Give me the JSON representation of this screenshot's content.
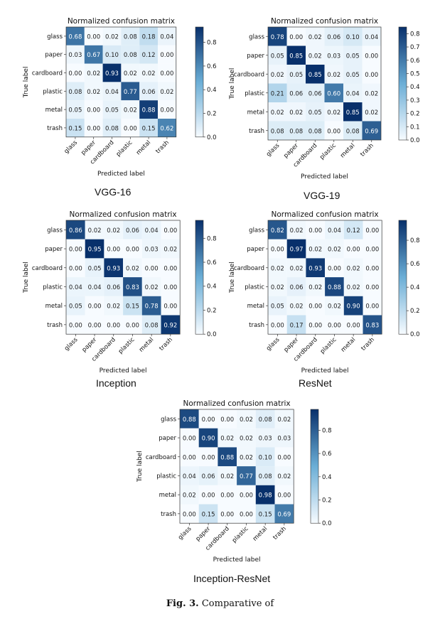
{
  "chart_data": [
    {
      "type": "heatmap",
      "title": "Normalized confusion matrix",
      "xlabel": "Predicted label",
      "ylabel": "True label",
      "model": "VGG-16",
      "classes": [
        "glass",
        "paper",
        "cardboard",
        "plastic",
        "metal",
        "trash"
      ],
      "matrix": [
        [
          "0.68",
          "0.00",
          "0.02",
          "0.08",
          "0.18",
          "0.04"
        ],
        [
          "0.03",
          "0.67",
          "0.10",
          "0.08",
          "0.12",
          "0.00"
        ],
        [
          "0.00",
          "0.02",
          "0.93",
          "0.02",
          "0.02",
          "0.00"
        ],
        [
          "0.08",
          "0.02",
          "0.04",
          "0.77",
          "0.06",
          "0.02"
        ],
        [
          "0.05",
          "0.00",
          "0.05",
          "0.02",
          "0.88",
          "0.00"
        ],
        [
          "0.15",
          "0.00",
          "0.08",
          "0.00",
          "0.15",
          "0.62"
        ]
      ],
      "colorbar_ticks": [
        "0.8",
        "0.6",
        "0.4",
        "0.2",
        "0.0"
      ],
      "colorbar_range": [
        0,
        0.93
      ]
    },
    {
      "type": "heatmap",
      "title": "Normalized confusion matrix",
      "xlabel": "Predicted label",
      "ylabel": "True label",
      "model": "VGG-19",
      "classes": [
        "glass",
        "paper",
        "cardboard",
        "plastic",
        "metal",
        "trash"
      ],
      "matrix": [
        [
          "0.78",
          "0.00",
          "0.02",
          "0.06",
          "0.10",
          "0.04"
        ],
        [
          "0.05",
          "0.85",
          "0.02",
          "0.03",
          "0.05",
          "0.00"
        ],
        [
          "0.02",
          "0.05",
          "0.85",
          "0.02",
          "0.05",
          "0.00"
        ],
        [
          "0.21",
          "0.06",
          "0.06",
          "0.60",
          "0.04",
          "0.02"
        ],
        [
          "0.02",
          "0.02",
          "0.05",
          "0.02",
          "0.85",
          "0.02"
        ],
        [
          "0.08",
          "0.08",
          "0.08",
          "0.00",
          "0.08",
          "0.69"
        ]
      ],
      "colorbar_ticks": [
        "0.8",
        "0.7",
        "0.6",
        "0.5",
        "0.4",
        "0.3",
        "0.2",
        "0.1",
        "0.0"
      ],
      "colorbar_range": [
        0,
        0.85
      ]
    },
    {
      "type": "heatmap",
      "title": "Normalized confusion matrix",
      "xlabel": "Predicted label",
      "ylabel": "True label",
      "model": "Inception",
      "classes": [
        "glass",
        "paper",
        "cardboard",
        "plastic",
        "metal",
        "trash"
      ],
      "matrix": [
        [
          "0.86",
          "0.02",
          "0.02",
          "0.06",
          "0.04",
          "0.00"
        ],
        [
          "0.00",
          "0.95",
          "0.00",
          "0.00",
          "0.03",
          "0.02"
        ],
        [
          "0.00",
          "0.05",
          "0.93",
          "0.02",
          "0.00",
          "0.00"
        ],
        [
          "0.04",
          "0.04",
          "0.06",
          "0.83",
          "0.02",
          "0.00"
        ],
        [
          "0.05",
          "0.00",
          "0.02",
          "0.15",
          "0.78",
          "0.00"
        ],
        [
          "0.00",
          "0.00",
          "0.00",
          "0.00",
          "0.08",
          "0.92"
        ]
      ],
      "colorbar_ticks": [
        "0.8",
        "0.6",
        "0.4",
        "0.2",
        "0.0"
      ],
      "colorbar_range": [
        0,
        0.95
      ]
    },
    {
      "type": "heatmap",
      "title": "Normalized confusion matrix",
      "xlabel": "Predicted label",
      "ylabel": "True label",
      "model": "ResNet",
      "classes": [
        "glass",
        "paper",
        "cardboard",
        "plastic",
        "metal",
        "trash"
      ],
      "matrix": [
        [
          "0.82",
          "0.02",
          "0.00",
          "0.04",
          "0.12",
          "0.00"
        ],
        [
          "0.00",
          "0.97",
          "0.02",
          "0.02",
          "0.00",
          "0.00"
        ],
        [
          "0.02",
          "0.02",
          "0.93",
          "0.00",
          "0.02",
          "0.00"
        ],
        [
          "0.02",
          "0.06",
          "0.02",
          "0.88",
          "0.02",
          "0.00"
        ],
        [
          "0.05",
          "0.02",
          "0.00",
          "0.02",
          "0.90",
          "0.00"
        ],
        [
          "0.00",
          "0.17",
          "0.00",
          "0.00",
          "0.00",
          "0.83"
        ]
      ],
      "colorbar_ticks": [
        "0.8",
        "0.6",
        "0.4",
        "0.2",
        "0.0"
      ],
      "colorbar_range": [
        0,
        0.97
      ]
    },
    {
      "type": "heatmap",
      "title": "Normalized confusion matrix",
      "xlabel": "Predicted label",
      "ylabel": "True label",
      "model": "Inception-ResNet",
      "classes": [
        "glass",
        "paper",
        "cardboard",
        "plastic",
        "metal",
        "trash"
      ],
      "matrix": [
        [
          "0.88",
          "0.00",
          "0.00",
          "0.02",
          "0.08",
          "0.02"
        ],
        [
          "0.00",
          "0.90",
          "0.02",
          "0.02",
          "0.03",
          "0.03"
        ],
        [
          "0.00",
          "0.00",
          "0.88",
          "0.02",
          "0.10",
          "0.00"
        ],
        [
          "0.04",
          "0.06",
          "0.02",
          "0.77",
          "0.08",
          "0.02"
        ],
        [
          "0.02",
          "0.00",
          "0.00",
          "0.00",
          "0.98",
          "0.00"
        ],
        [
          "0.00",
          "0.15",
          "0.00",
          "0.00",
          "0.15",
          "0.69"
        ]
      ],
      "colorbar_ticks": [
        "0.8",
        "0.6",
        "0.4",
        "0.2",
        "0.0"
      ],
      "colorbar_range": [
        0,
        0.98
      ]
    }
  ],
  "caption": {
    "fig_label": "Fig. 3.",
    "text": "Comparative of"
  },
  "colors": {
    "low": "#f7fbff",
    "high": "#08306b",
    "text_dark": "#222222",
    "text_light": "#ffffff"
  }
}
